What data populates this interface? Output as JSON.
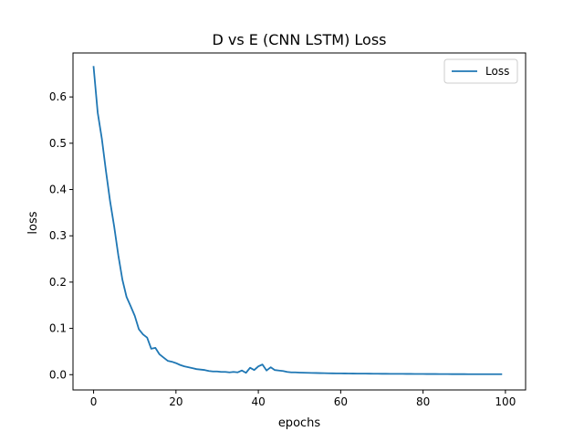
{
  "chart_data": {
    "type": "line",
    "title": "D vs E (CNN LSTM) Loss",
    "xlabel": "epochs",
    "ylabel": "loss",
    "xlim": [
      -5,
      104.9
    ],
    "ylim": [
      -0.033,
      0.695
    ],
    "xticks": [
      0,
      20,
      40,
      60,
      80,
      100
    ],
    "yticks": [
      0.0,
      0.1,
      0.2,
      0.3,
      0.4,
      0.5,
      0.6
    ],
    "xtick_labels": [
      "0",
      "20",
      "40",
      "60",
      "80",
      "100"
    ],
    "ytick_labels": [
      "0.0",
      "0.1",
      "0.2",
      "0.3",
      "0.4",
      "0.5",
      "0.6"
    ],
    "grid": false,
    "legend": {
      "position": "top-right",
      "entries": [
        "Loss"
      ]
    },
    "series": [
      {
        "name": "Loss",
        "color": "#1f77b4",
        "x": [
          0,
          1,
          2,
          3,
          4,
          5,
          6,
          7,
          8,
          9,
          10,
          11,
          12,
          13,
          14,
          15,
          16,
          17,
          18,
          19,
          20,
          21,
          22,
          23,
          24,
          25,
          26,
          27,
          28,
          29,
          30,
          31,
          32,
          33,
          34,
          35,
          36,
          37,
          38,
          39,
          40,
          41,
          42,
          43,
          44,
          45,
          46,
          47,
          48,
          49,
          50,
          51,
          52,
          53,
          54,
          55,
          56,
          57,
          58,
          59,
          60,
          61,
          62,
          63,
          64,
          65,
          66,
          67,
          68,
          69,
          70,
          71,
          72,
          73,
          74,
          75,
          76,
          77,
          78,
          79,
          80,
          81,
          82,
          83,
          84,
          85,
          86,
          87,
          88,
          89,
          90,
          91,
          92,
          93,
          94,
          95,
          96,
          97,
          98,
          99
        ],
        "values": [
          0.665,
          0.566,
          0.51,
          0.44,
          0.375,
          0.32,
          0.258,
          0.205,
          0.168,
          0.148,
          0.127,
          0.098,
          0.087,
          0.08,
          0.056,
          0.058,
          0.044,
          0.037,
          0.03,
          0.028,
          0.025,
          0.021,
          0.018,
          0.016,
          0.014,
          0.012,
          0.011,
          0.01,
          0.008,
          0.007,
          0.007,
          0.006,
          0.006,
          0.005,
          0.006,
          0.005,
          0.009,
          0.004,
          0.015,
          0.01,
          0.018,
          0.022,
          0.009,
          0.016,
          0.01,
          0.009,
          0.008,
          0.006,
          0.005,
          0.005,
          0.0045,
          0.0042,
          0.004,
          0.0038,
          0.0036,
          0.0034,
          0.0032,
          0.003,
          0.0029,
          0.0028,
          0.0027,
          0.0026,
          0.0025,
          0.0024,
          0.0023,
          0.0022,
          0.0022,
          0.0021,
          0.002,
          0.002,
          0.0019,
          0.0019,
          0.0018,
          0.0018,
          0.0017,
          0.0017,
          0.0016,
          0.0016,
          0.0015,
          0.0015,
          0.0015,
          0.0014,
          0.0014,
          0.0014,
          0.0013,
          0.0013,
          0.0013,
          0.0012,
          0.0012,
          0.0012,
          0.0012,
          0.0011,
          0.0011,
          0.0011,
          0.0011,
          0.001,
          0.001,
          0.001,
          0.001,
          0.001
        ]
      }
    ]
  }
}
